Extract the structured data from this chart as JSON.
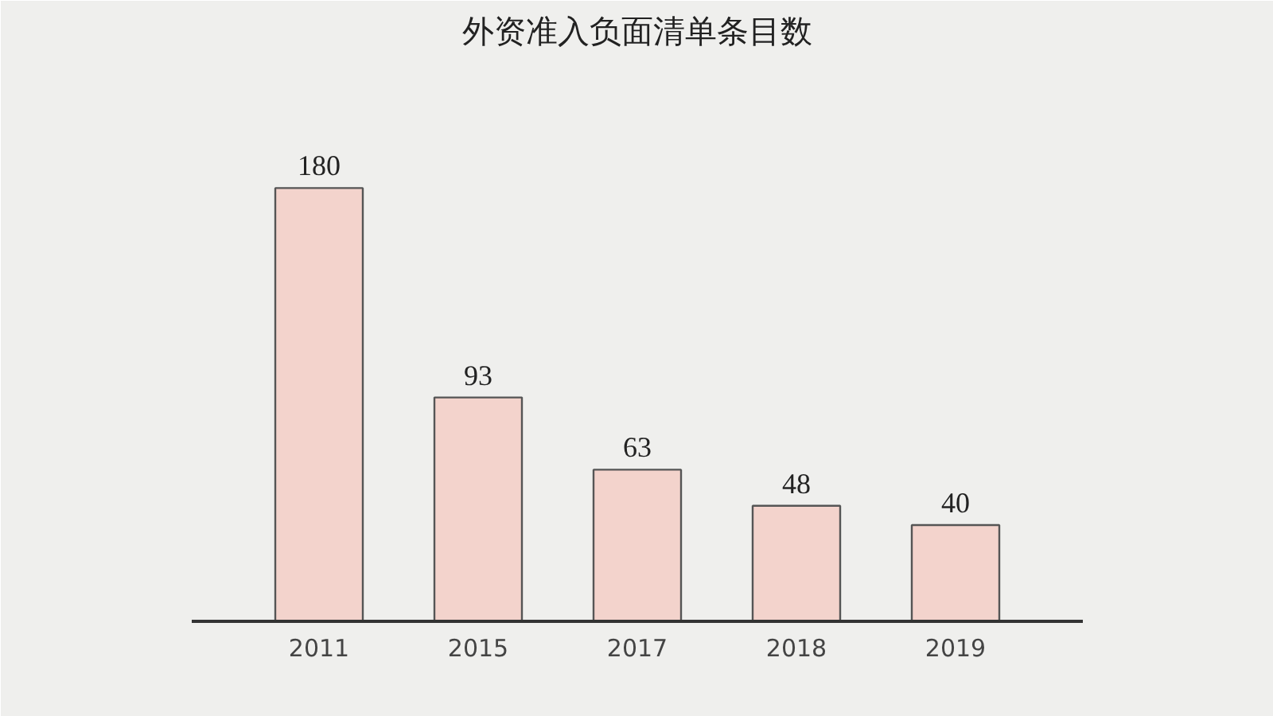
{
  "chart_data": {
    "type": "bar",
    "title": "外资准入负面清单条目数",
    "categories": [
      "2011",
      "2015",
      "2017",
      "2018",
      "2019"
    ],
    "values": [
      180,
      93,
      63,
      48,
      40
    ],
    "color": "#f3d3cc",
    "data_labels": true
  }
}
